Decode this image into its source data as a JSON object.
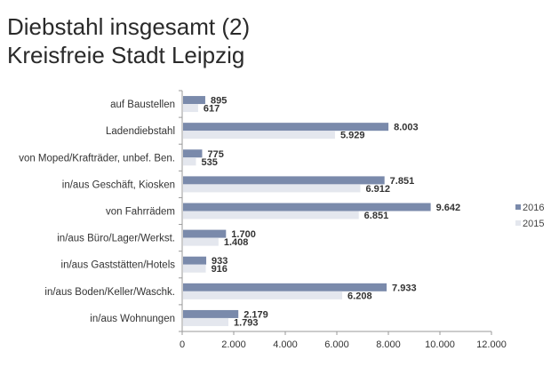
{
  "title": {
    "line1": "Diebstahl insgesamt (2)",
    "line2": "Kreisfreie Stadt Leipzig"
  },
  "chart_data": {
    "type": "bar",
    "orientation": "horizontal",
    "title": "Diebstahl insgesamt (2) Kreisfreie Stadt Leipzig",
    "xlabel": "",
    "ylabel": "",
    "xlim": [
      0,
      12000
    ],
    "x_ticks": [
      0,
      2000,
      4000,
      6000,
      8000,
      10000,
      12000
    ],
    "x_tick_labels": [
      "0",
      "2.000",
      "4.000",
      "6.000",
      "8.000",
      "10.000",
      "12.000"
    ],
    "grid": false,
    "legend_position": "right",
    "categories": [
      "auf Baustellen",
      "Ladendiebstahl",
      "von Moped/Krafträder, unbef. Ben.",
      "in/aus Geschäft, Kiosken",
      "von Fahrrädem",
      "in/aus Büro/Lager/Werkst.",
      "in/aus Gaststätten/Hotels",
      "in/aus Boden/Keller/Waschk.",
      "in/aus Wohnungen"
    ],
    "series": [
      {
        "name": "2016",
        "color": "#7a8aab",
        "values": [
          895,
          8003,
          775,
          7851,
          9642,
          1700,
          933,
          7933,
          2179
        ],
        "labels": [
          "895",
          "8.003",
          "775",
          "7.851",
          "9.642",
          "1.700",
          "933",
          "7.933",
          "2.179"
        ]
      },
      {
        "name": "2015",
        "color": "#e4e7ee",
        "values": [
          617,
          5929,
          535,
          6912,
          6851,
          1408,
          916,
          6208,
          1793
        ],
        "labels": [
          "617",
          "5.929",
          "535",
          "6.912",
          "6.851",
          "1.408",
          "916",
          "6.208",
          "1.793"
        ]
      }
    ]
  }
}
